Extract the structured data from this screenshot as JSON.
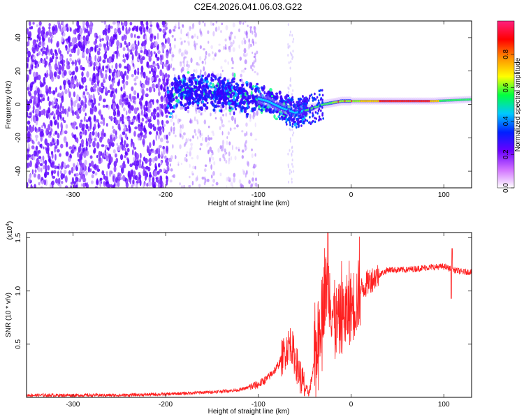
{
  "title": "C2E4.2026.041.06.03.G22",
  "chart_data": [
    {
      "type": "heatmap",
      "name": "spectrogram",
      "xlabel": "Height of straight line (km)",
      "ylabel": "Frequency (Hz)",
      "xlim": [
        -350,
        130
      ],
      "ylim": [
        -50,
        50
      ],
      "xticks": [
        -300,
        -200,
        -100,
        0,
        100
      ],
      "yticks": [
        -40,
        -20,
        0,
        20,
        40
      ],
      "colorbar": {
        "label": "Normalized spectral amplitude",
        "range": [
          0,
          1
        ],
        "ticks": [
          0.0,
          0.2,
          0.4,
          0.6,
          0.8
        ],
        "stops": [
          "#ffffff",
          "#d070ff",
          "#6a00ff",
          "#0020ff",
          "#00c8ff",
          "#00ff40",
          "#ffff00",
          "#ff9000",
          "#ff0000",
          "#ff2080"
        ]
      },
      "regions": [
        {
          "x": [
            -350,
            -195
          ],
          "description": "dense",
          "level": 0.15
        },
        {
          "x": [
            -195,
            -100
          ],
          "description": "sparse",
          "level": 0.05
        },
        {
          "x": [
            -100,
            130
          ],
          "description": "band",
          "level": 0.85
        }
      ],
      "ridge": [
        {
          "x": -190,
          "f": 8
        },
        {
          "x": -150,
          "f": 7
        },
        {
          "x": -110,
          "f": 5
        },
        {
          "x": -90,
          "f": 2
        },
        {
          "x": -75,
          "f": -2
        },
        {
          "x": -60,
          "f": -5
        },
        {
          "x": -45,
          "f": -3
        },
        {
          "x": -30,
          "f": 0
        },
        {
          "x": -10,
          "f": 2
        },
        {
          "x": 0,
          "f": 2
        },
        {
          "x": 50,
          "f": 2
        },
        {
          "x": 90,
          "f": 2
        },
        {
          "x": 130,
          "f": 3
        }
      ]
    },
    {
      "type": "line",
      "name": "snr",
      "xlabel": "Height of straight line (km)",
      "ylabel": "SNR (10 * v/v)",
      "scale_label": "(x10",
      "scale_exp": "4",
      "xlim": [
        -350,
        130
      ],
      "ylim": [
        0,
        1.55
      ],
      "xticks": [
        -300,
        -200,
        -100,
        0,
        100
      ],
      "yticks": [
        0.5,
        1.0,
        1.5
      ],
      "series": [
        {
          "name": "SNR",
          "color": "#ff2020",
          "x": [
            -350,
            -300,
            -250,
            -200,
            -150,
            -120,
            -100,
            -90,
            -80,
            -70,
            -65,
            -60,
            -55,
            -50,
            -45,
            -40,
            -35,
            -30,
            -25,
            -20,
            -15,
            -10,
            -5,
            0,
            5,
            10,
            15,
            20,
            30,
            40,
            60,
            80,
            100,
            110,
            120,
            130
          ],
          "y": [
            0.02,
            0.02,
            0.02,
            0.03,
            0.05,
            0.07,
            0.12,
            0.18,
            0.28,
            0.45,
            0.52,
            0.35,
            0.2,
            0.08,
            0.05,
            0.3,
            0.6,
            0.9,
            1.1,
            0.8,
            0.7,
            0.75,
            0.8,
            0.85,
            0.9,
            1.0,
            1.05,
            1.1,
            1.15,
            1.2,
            1.2,
            1.22,
            1.23,
            1.2,
            1.18,
            1.18
          ]
        }
      ]
    }
  ]
}
